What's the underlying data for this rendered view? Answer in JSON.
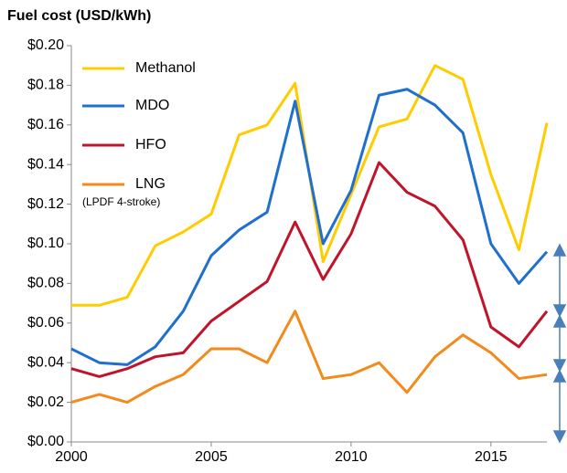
{
  "chart_data": {
    "type": "line",
    "title": "Fuel cost (USD/kWh)",
    "x": [
      2000,
      2001,
      2002,
      2003,
      2004,
      2005,
      2006,
      2007,
      2008,
      2009,
      2010,
      2011,
      2012,
      2013,
      2014,
      2015,
      2016,
      2017
    ],
    "series": [
      {
        "name": "Methanol",
        "color": "#ffcc00",
        "values": [
          0.069,
          0.069,
          0.073,
          0.099,
          0.106,
          0.115,
          0.155,
          0.16,
          0.181,
          0.091,
          0.125,
          0.159,
          0.163,
          0.19,
          0.183,
          0.135,
          0.097,
          0.161
        ]
      },
      {
        "name": "MDO",
        "color": "#1f6fd0",
        "values": [
          0.047,
          0.04,
          0.039,
          0.048,
          0.066,
          0.094,
          0.107,
          0.116,
          0.172,
          0.1,
          0.127,
          0.175,
          0.178,
          0.17,
          0.156,
          0.1,
          0.08,
          0.096
        ]
      },
      {
        "name": "HFO",
        "color": "#c0142a",
        "values": [
          0.037,
          0.033,
          0.037,
          0.043,
          0.045,
          0.061,
          0.071,
          0.081,
          0.111,
          0.082,
          0.105,
          0.141,
          0.126,
          0.119,
          0.102,
          0.058,
          0.048,
          0.066
        ]
      },
      {
        "name": "LNG",
        "color": "#f28a1c",
        "values": [
          0.02,
          0.024,
          0.02,
          0.028,
          0.034,
          0.047,
          0.047,
          0.04,
          0.066,
          0.032,
          0.034,
          0.04,
          0.025,
          0.043,
          0.054,
          0.045,
          0.032,
          0.034
        ]
      }
    ],
    "annotations": [
      "(LPDF 4-stroke)"
    ],
    "xlim": [
      2000,
      2017
    ],
    "xticks": [
      2000,
      2005,
      2010,
      2015
    ],
    "ylim": [
      0,
      0.2
    ],
    "yticks": [
      {
        "value": 0,
        "label": "$0.00"
      },
      {
        "value": 0.02,
        "label": "$0.02"
      },
      {
        "value": 0.04,
        "label": "$0.04"
      },
      {
        "value": 0.06,
        "label": "$0.06"
      },
      {
        "value": 0.08,
        "label": "$0.08"
      },
      {
        "value": 0.1,
        "label": "$0.10"
      },
      {
        "value": 0.12,
        "label": "$0.12"
      },
      {
        "value": 0.14,
        "label": "$0.14"
      },
      {
        "value": 0.16,
        "label": "$0.16"
      },
      {
        "value": 0.18,
        "label": "$0.18"
      },
      {
        "value": 0.2,
        "label": "$0.20"
      }
    ]
  }
}
